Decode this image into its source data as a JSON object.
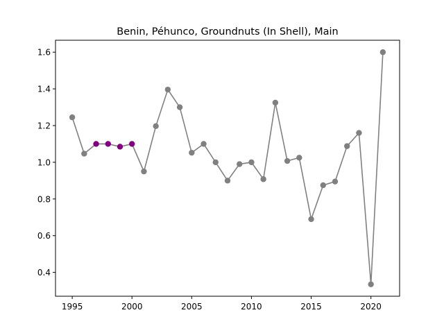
{
  "chart_data": {
    "type": "line",
    "title": "Benin, Péhunco, Groundnuts (In Shell), Main",
    "xlabel": "",
    "ylabel": "",
    "xlim": [
      1993.6,
      2022.4
    ],
    "ylim": [
      0.27,
      1.665
    ],
    "x_ticks": [
      1995,
      2000,
      2005,
      2010,
      2015,
      2020
    ],
    "x_tick_labels": [
      "1995",
      "2000",
      "2005",
      "2010",
      "2015",
      "2020"
    ],
    "y_ticks": [
      0.4,
      0.6,
      0.8,
      1.0,
      1.2,
      1.4,
      1.6
    ],
    "y_tick_labels": [
      "0.4",
      "0.6",
      "0.8",
      "1.0",
      "1.2",
      "1.4",
      "1.6"
    ],
    "grid": false,
    "line_color": "#808080",
    "marker_color": "#808080",
    "highlight_color": "#800080",
    "series": [
      {
        "x": [
          1995,
          1996,
          1997,
          1998,
          1999,
          2000,
          2001,
          2002,
          2003,
          2004,
          2005,
          2006,
          2007,
          2008,
          2009,
          2010,
          2011,
          2012,
          2013,
          2014,
          2015,
          2016,
          2017,
          2018,
          2019,
          2020,
          2021
        ],
        "values": [
          1.245,
          1.047,
          1.1,
          1.1,
          1.085,
          1.1,
          0.95,
          1.197,
          1.396,
          1.3,
          1.052,
          1.1,
          1.0,
          0.9,
          0.99,
          1.0,
          0.908,
          1.325,
          1.007,
          1.025,
          0.69,
          0.875,
          0.895,
          1.088,
          1.16,
          0.335,
          1.6
        ],
        "highlight_x": [
          1997,
          1998,
          1999,
          2000
        ]
      }
    ]
  }
}
